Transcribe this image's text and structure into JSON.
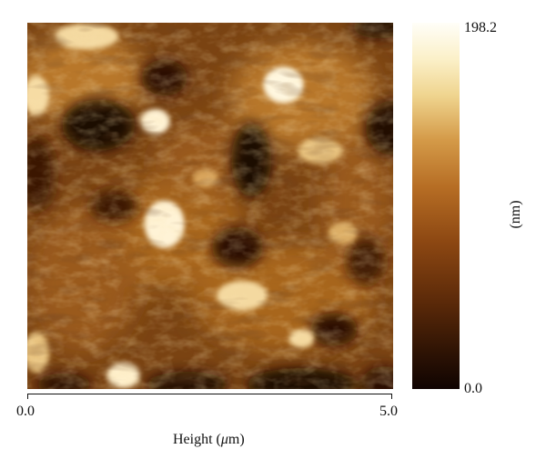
{
  "image": {
    "kind": "atomic force microscopy height map",
    "colormap": [
      "#100402",
      "#5c2a09",
      "#b66d24",
      "#efd48e",
      "#fffef8"
    ]
  },
  "colorbar": {
    "max_label": "198.2",
    "min_label": "0.0",
    "unit_label": "(nm)"
  },
  "x_axis": {
    "min_label": "0.0",
    "max_label": "5.0",
    "label_prefix": "Height (",
    "label_mu": "μ",
    "label_suffix": "m)"
  }
}
